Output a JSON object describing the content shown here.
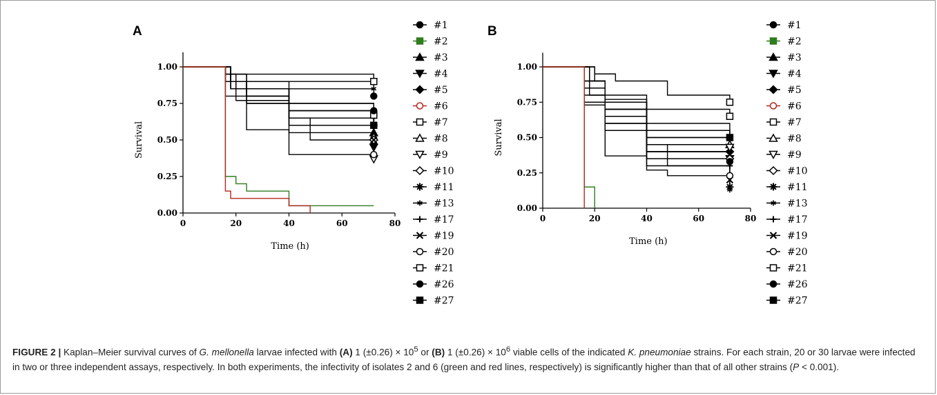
{
  "caption": {
    "label": "FIGURE 2 |",
    "t1": " Kaplan–Meier survival curves of ",
    "species1": "G. mellonella",
    "t2": " larvae infected with ",
    "panelA": "(A)",
    "t3": " 1 (±0.26) × 10",
    "exp1": "5",
    "t4": " or ",
    "panelB": "(B)",
    "t5": " 1 (±0.26) × 10",
    "exp2": "6",
    "t6": " viable cells of the indicated ",
    "species2": "K. pneumoniae",
    "t7": " strains. For each strain, 20 or 30 larvae were infected in two or three independent assays, respectively. In both experiments, the infectivity of isolates 2 and 6 (green and red lines, respectively) is significantly higher than that of all other strains (",
    "pvar": "P",
    "t8": " < 0.001)."
  },
  "chart_data": [
    {
      "type": "line",
      "panel": "A",
      "xlabel": "Time (h)",
      "ylabel": "Survival",
      "xlim": [
        0,
        80
      ],
      "ylim": [
        0,
        1.1
      ],
      "xticks": [
        "0",
        "20",
        "40",
        "60",
        "80"
      ],
      "yticks": [
        "0.00",
        "0.25",
        "0.50",
        "0.75",
        "1.00"
      ],
      "step": true,
      "legend": [
        "#1",
        "#2",
        "#3",
        "#4",
        "#5",
        "#6",
        "#7",
        "#8",
        "#9",
        "#10",
        "#11",
        "#13",
        "#17",
        "#19",
        "#20",
        "#21",
        "#26",
        "#27"
      ],
      "legend_markers": [
        "filled-circle",
        "filled-square",
        "filled-triangle-up",
        "filled-triangle-down",
        "filled-diamond",
        "open-circle",
        "open-square",
        "open-triangle-up",
        "open-triangle-down",
        "open-diamond",
        "star",
        "star-small",
        "plus",
        "x",
        "open-circle",
        "open-square",
        "filled-circle",
        "filled-square"
      ],
      "legend_colors": [
        "#000000",
        "#2e7d1e",
        "#000000",
        "#000000",
        "#000000",
        "#b3261e",
        "#000000",
        "#000000",
        "#000000",
        "#000000",
        "#000000",
        "#000000",
        "#000000",
        "#000000",
        "#000000",
        "#000000",
        "#000000",
        "#000000"
      ],
      "series": [
        {
          "name": "#2",
          "color": "#2e7d1e",
          "x": [
            0,
            16,
            20,
            24,
            40,
            72
          ],
          "y": [
            1.0,
            0.25,
            0.2,
            0.15,
            0.05,
            0.05
          ]
        },
        {
          "name": "#6",
          "color": "#b3261e",
          "x": [
            0,
            16,
            18,
            40,
            48
          ],
          "y": [
            1.0,
            0.15,
            0.1,
            0.05,
            0.0
          ]
        },
        {
          "name": "#1",
          "color": "#000000",
          "x": [
            0,
            16,
            24,
            72
          ],
          "y": [
            1.0,
            0.95,
            0.85,
            0.8
          ]
        },
        {
          "name": "#3",
          "color": "#000000",
          "x": [
            0,
            18,
            24,
            40,
            72
          ],
          "y": [
            1.0,
            0.9,
            0.85,
            0.7,
            0.55
          ]
        },
        {
          "name": "#4",
          "color": "#000000",
          "x": [
            0,
            18,
            24,
            40,
            48,
            72
          ],
          "y": [
            1.0,
            0.85,
            0.8,
            0.65,
            0.5,
            0.45
          ]
        },
        {
          "name": "#5",
          "color": "#000000",
          "x": [
            0,
            16,
            24,
            40,
            72
          ],
          "y": [
            1.0,
            0.9,
            0.8,
            0.6,
            0.47
          ]
        },
        {
          "name": "#7",
          "color": "#000000",
          "x": [
            0,
            16,
            72
          ],
          "y": [
            1.0,
            0.95,
            0.9
          ]
        },
        {
          "name": "#8",
          "color": "#000000",
          "x": [
            0,
            18,
            24,
            40,
            72
          ],
          "y": [
            1.0,
            0.9,
            0.8,
            0.65,
            0.52
          ]
        },
        {
          "name": "#9",
          "color": "#000000",
          "x": [
            0,
            18,
            24,
            40,
            72
          ],
          "y": [
            1.0,
            0.85,
            0.75,
            0.55,
            0.37
          ]
        },
        {
          "name": "#10",
          "color": "#000000",
          "x": [
            0,
            16,
            24,
            40,
            72
          ],
          "y": [
            1.0,
            0.9,
            0.8,
            0.65,
            0.5
          ]
        },
        {
          "name": "#11",
          "color": "#000000",
          "x": [
            0,
            18,
            40,
            72
          ],
          "y": [
            1.0,
            0.9,
            0.75,
            0.6
          ]
        },
        {
          "name": "#13",
          "color": "#000000",
          "x": [
            0,
            16,
            24,
            72
          ],
          "y": [
            1.0,
            0.95,
            0.9,
            0.85
          ]
        },
        {
          "name": "#17",
          "color": "#000000",
          "x": [
            0,
            18,
            24,
            40,
            72
          ],
          "y": [
            1.0,
            0.85,
            0.75,
            0.7,
            0.65
          ]
        },
        {
          "name": "#19",
          "color": "#000000",
          "x": [
            0,
            18,
            24,
            40,
            72
          ],
          "y": [
            1.0,
            0.9,
            0.85,
            0.6,
            0.5
          ]
        },
        {
          "name": "#20",
          "color": "#000000",
          "x": [
            0,
            16,
            24,
            40,
            72
          ],
          "y": [
            1.0,
            0.8,
            0.57,
            0.4,
            0.4
          ]
        },
        {
          "name": "#21",
          "color": "#000000",
          "x": [
            0,
            16,
            20,
            40,
            72
          ],
          "y": [
            1.0,
            0.9,
            0.85,
            0.7,
            0.67
          ]
        },
        {
          "name": "#26",
          "color": "#000000",
          "x": [
            0,
            18,
            24,
            40,
            72
          ],
          "y": [
            1.0,
            0.9,
            0.85,
            0.75,
            0.7
          ]
        },
        {
          "name": "#27",
          "color": "#000000",
          "x": [
            0,
            18,
            20,
            40,
            72
          ],
          "y": [
            1.0,
            0.95,
            0.77,
            0.7,
            0.6
          ]
        }
      ]
    },
    {
      "type": "line",
      "panel": "B",
      "xlabel": "Time (h)",
      "ylabel": "Survival",
      "xlim": [
        0,
        80
      ],
      "ylim": [
        0,
        1.1
      ],
      "xticks": [
        "0",
        "20",
        "40",
        "60",
        "80"
      ],
      "yticks": [
        "0.00",
        "0.25",
        "0.50",
        "0.75",
        "1.00"
      ],
      "step": true,
      "legend": [
        "#1",
        "#2",
        "#3",
        "#4",
        "#5",
        "#6",
        "#7",
        "#8",
        "#9",
        "#10",
        "#11",
        "#13",
        "#17",
        "#19",
        "#20",
        "#21",
        "#26",
        "#27"
      ],
      "legend_markers": [
        "filled-circle",
        "filled-square",
        "filled-triangle-up",
        "filled-triangle-down",
        "filled-diamond",
        "open-circle",
        "open-square",
        "open-triangle-up",
        "open-triangle-down",
        "open-diamond",
        "star",
        "star-small",
        "plus",
        "x",
        "open-circle",
        "open-square",
        "filled-circle",
        "filled-square"
      ],
      "legend_colors": [
        "#000000",
        "#2e7d1e",
        "#000000",
        "#000000",
        "#000000",
        "#b3261e",
        "#000000",
        "#000000",
        "#000000",
        "#000000",
        "#000000",
        "#000000",
        "#000000",
        "#000000",
        "#000000",
        "#000000",
        "#000000",
        "#000000"
      ],
      "series": [
        {
          "name": "#2",
          "color": "#2e7d1e",
          "x": [
            0,
            16,
            20
          ],
          "y": [
            1.0,
            0.15,
            0.0
          ]
        },
        {
          "name": "#6",
          "color": "#b3261e",
          "x": [
            0,
            16
          ],
          "y": [
            1.0,
            0.0
          ]
        },
        {
          "name": "#1",
          "color": "#000000",
          "x": [
            0,
            16,
            24,
            40,
            72
          ],
          "y": [
            1.0,
            0.9,
            0.75,
            0.55,
            0.5
          ]
        },
        {
          "name": "#3",
          "color": "#000000",
          "x": [
            0,
            18,
            24,
            40,
            72
          ],
          "y": [
            1.0,
            0.85,
            0.7,
            0.5,
            0.45
          ]
        },
        {
          "name": "#4",
          "color": "#000000",
          "x": [
            0,
            16,
            24,
            40,
            72
          ],
          "y": [
            1.0,
            0.85,
            0.7,
            0.4,
            0.35
          ]
        },
        {
          "name": "#5",
          "color": "#000000",
          "x": [
            0,
            16,
            24,
            40,
            72
          ],
          "y": [
            1.0,
            0.85,
            0.65,
            0.45,
            0.4
          ]
        },
        {
          "name": "#7",
          "color": "#000000",
          "x": [
            0,
            20,
            28,
            48,
            72
          ],
          "y": [
            1.0,
            0.95,
            0.9,
            0.8,
            0.75
          ]
        },
        {
          "name": "#8",
          "color": "#000000",
          "x": [
            0,
            16,
            24,
            40,
            72
          ],
          "y": [
            1.0,
            0.9,
            0.75,
            0.5,
            0.45
          ]
        },
        {
          "name": "#9",
          "color": "#000000",
          "x": [
            0,
            16,
            24,
            40,
            48,
            72
          ],
          "y": [
            1.0,
            0.85,
            0.7,
            0.45,
            0.4,
            0.43
          ]
        },
        {
          "name": "#10",
          "color": "#000000",
          "x": [
            0,
            18,
            24,
            40,
            72
          ],
          "y": [
            1.0,
            0.8,
            0.6,
            0.4,
            0.35
          ]
        },
        {
          "name": "#11",
          "color": "#000000",
          "x": [
            0,
            16,
            24,
            40,
            72
          ],
          "y": [
            1.0,
            0.75,
            0.55,
            0.3,
            0.15
          ]
        },
        {
          "name": "#13",
          "color": "#000000",
          "x": [
            0,
            16,
            24,
            40,
            48,
            72
          ],
          "y": [
            1.0,
            0.73,
            0.37,
            0.27,
            0.23,
            0.13
          ]
        },
        {
          "name": "#17",
          "color": "#000000",
          "x": [
            0,
            16,
            24,
            40,
            72
          ],
          "y": [
            1.0,
            0.8,
            0.6,
            0.35,
            0.3
          ]
        },
        {
          "name": "#19",
          "color": "#000000",
          "x": [
            0,
            16,
            24,
            40,
            48,
            72
          ],
          "y": [
            1.0,
            0.85,
            0.65,
            0.4,
            0.3,
            0.2
          ]
        },
        {
          "name": "#20",
          "color": "#000000",
          "x": [
            0,
            16,
            24,
            40,
            72
          ],
          "y": [
            1.0,
            0.85,
            0.55,
            0.35,
            0.23
          ]
        },
        {
          "name": "#21",
          "color": "#000000",
          "x": [
            0,
            18,
            24,
            40,
            72
          ],
          "y": [
            1.0,
            0.9,
            0.77,
            0.7,
            0.65
          ]
        },
        {
          "name": "#26",
          "color": "#000000",
          "x": [
            0,
            18,
            24,
            40,
            72
          ],
          "y": [
            1.0,
            0.85,
            0.75,
            0.55,
            0.33
          ]
        },
        {
          "name": "#27",
          "color": "#000000",
          "x": [
            0,
            20,
            24,
            40,
            72
          ],
          "y": [
            1.0,
            0.9,
            0.8,
            0.6,
            0.5
          ]
        }
      ]
    }
  ]
}
